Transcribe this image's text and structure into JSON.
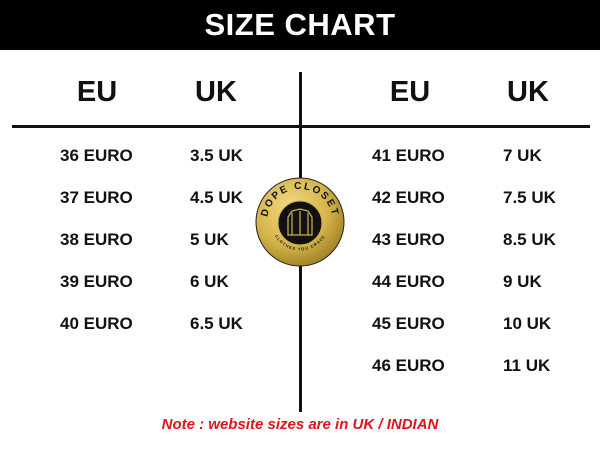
{
  "title": "SIZE CHART",
  "headers": {
    "left_eu": "EU",
    "left_uk": "UK",
    "right_eu": "EU",
    "right_uk": "UK"
  },
  "left_rows": [
    {
      "eu": "36 EURO",
      "uk": "3.5 UK"
    },
    {
      "eu": "37 EURO",
      "uk": "4.5 UK"
    },
    {
      "eu": "38 EURO",
      "uk": "5 UK"
    },
    {
      "eu": "39 EURO",
      "uk": "6 UK"
    },
    {
      "eu": "40 EURO",
      "uk": "6.5 UK"
    }
  ],
  "right_rows": [
    {
      "eu": "41 EURO",
      "uk": "7 UK"
    },
    {
      "eu": "42 EURO",
      "uk": "7.5 UK"
    },
    {
      "eu": "43 EURO",
      "uk": "8.5 UK"
    },
    {
      "eu": "44 EURO",
      "uk": "9 UK"
    },
    {
      "eu": "45 EURO",
      "uk": "10 UK"
    },
    {
      "eu": "46 EURO",
      "uk": "11 UK"
    }
  ],
  "logo": {
    "brand": "DOPE CLOSET",
    "tagline": "CLOTHES YOU CRAVE",
    "icon": "jacket-icon",
    "color": "#d4b44a"
  },
  "note": "Note : website sizes are in UK / INDIAN",
  "colors": {
    "header_bg": "#000000",
    "note": "#e0141e"
  }
}
